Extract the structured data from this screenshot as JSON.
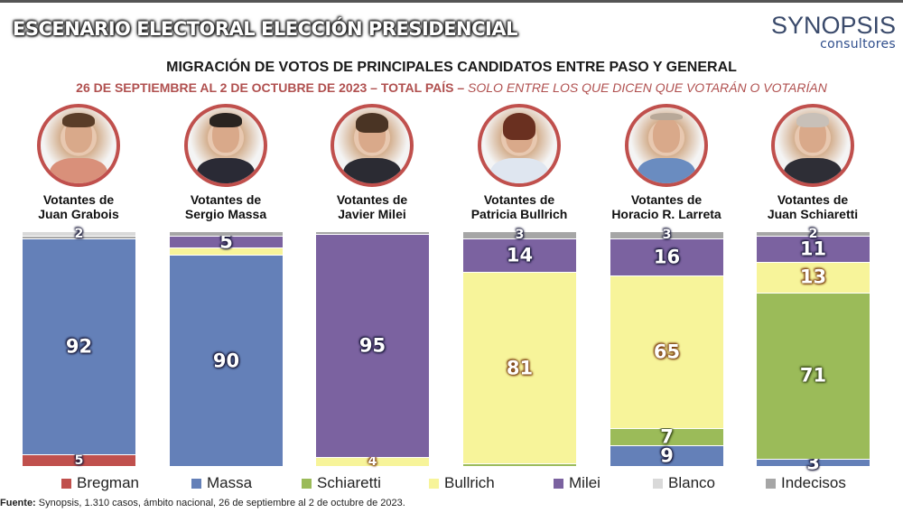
{
  "header": {
    "main_title": "ESCENARIO ELECTORAL ELECCIÓN PRESIDENCIAL",
    "logo_main": "SYNOPSIS",
    "logo_sub": "consultores",
    "subtitle": "MIGRACIÓN DE VOTOS DE PRINCIPALES CANDIDATOS ENTRE PASO Y GENERAL",
    "subtitle2_bold": "26 DE SEPTIEMBRE AL 2 DE OCTUBRE DE 2023 – TOTAL PAÍS –",
    "subtitle2_italic": "SOLO ENTRE LOS QUE DICEN QUE VOTARÁN O VOTARÍAN"
  },
  "columns": [
    {
      "line1": "Votantes de",
      "line2": "Juan Grabois"
    },
    {
      "line1": "Votantes de",
      "line2": "Sergio Massa"
    },
    {
      "line1": "Votantes de",
      "line2": "Javier Milei"
    },
    {
      "line1": "Votantes de",
      "line2": "Patricia Bullrich"
    },
    {
      "line1": "Votantes de",
      "line2": "Horacio R. Larreta"
    },
    {
      "line1": "Votantes de",
      "line2": "Juan Schiaretti"
    }
  ],
  "colors": {
    "Bregman": "#c0504d",
    "Massa": "#6480b8",
    "Schiaretti": "#9bbb59",
    "Bullrich": "#f7f49a",
    "Milei": "#7b62a0",
    "Blanco": "#d9d9d9",
    "Indecisos": "#a6a6a6",
    "accent_red": "#b0504f"
  },
  "legend": [
    {
      "label": "Bregman",
      "color": "#c0504d"
    },
    {
      "label": "Massa",
      "color": "#6480b8"
    },
    {
      "label": "Schiaretti",
      "color": "#9bbb59"
    },
    {
      "label": "Bullrich",
      "color": "#f7f49a"
    },
    {
      "label": "Milei",
      "color": "#7b62a0"
    },
    {
      "label": "Blanco",
      "color": "#d9d9d9"
    },
    {
      "label": "Indecisos",
      "color": "#a6a6a6"
    }
  ],
  "footer": {
    "source_label": "Fuente:",
    "source_text": " Synopsis, 1.310 casos, ámbito nacional, 26 de septiembre al 2 de octubre de 2023."
  },
  "chart_data": {
    "type": "bar",
    "stacked": true,
    "normalized_100": true,
    "title": "MIGRACIÓN DE VOTOS DE PRINCIPALES CANDIDATOS ENTRE PASO Y GENERAL",
    "subtitle": "26 DE SEPTIEMBRE AL 2 DE OCTUBRE DE 2023 – TOTAL PAÍS – SOLO ENTRE LOS QUE DICEN QUE VOTARÁN O VOTARÍAN",
    "categories": [
      "Votantes de Juan Grabois",
      "Votantes de Sergio Massa",
      "Votantes de Javier Milei",
      "Votantes de Patricia Bullrich",
      "Votantes de Horacio R. Larreta",
      "Votantes de Juan Schiaretti"
    ],
    "stack_order_bottom_to_top": [
      "Bregman",
      "Massa",
      "Schiaretti",
      "Bullrich",
      "Milei",
      "Indecisos",
      "Blanco"
    ],
    "series": [
      {
        "name": "Bregman",
        "values": [
          5,
          0,
          0,
          0,
          0,
          0
        ]
      },
      {
        "name": "Massa",
        "values": [
          92,
          90,
          0,
          0,
          9,
          3
        ]
      },
      {
        "name": "Schiaretti",
        "values": [
          0,
          0,
          0,
          1,
          7,
          71
        ]
      },
      {
        "name": "Bullrich",
        "values": [
          0,
          3,
          4,
          81,
          65,
          13
        ]
      },
      {
        "name": "Milei",
        "values": [
          0,
          5,
          95,
          14,
          16,
          11
        ]
      },
      {
        "name": "Indecisos",
        "values": [
          1,
          2,
          1,
          3,
          3,
          2
        ]
      },
      {
        "name": "Blanco",
        "values": [
          2,
          0,
          0,
          0,
          0,
          0
        ]
      }
    ],
    "shown_labels": [
      {
        "category": "Votantes de Juan Grabois",
        "labels": {
          "Bregman": 5,
          "Massa": 92,
          "Blanco": 2
        }
      },
      {
        "category": "Votantes de Sergio Massa",
        "labels": {
          "Massa": 90,
          "Milei": 5
        }
      },
      {
        "category": "Votantes de Javier Milei",
        "labels": {
          "Bullrich": 4,
          "Milei": 95
        }
      },
      {
        "category": "Votantes de Patricia Bullrich",
        "labels": {
          "Bullrich": 81,
          "Milei": 14,
          "Indecisos": 3
        }
      },
      {
        "category": "Votantes de Horacio R. Larreta",
        "labels": {
          "Massa": 9,
          "Schiaretti": 7,
          "Bullrich": 65,
          "Milei": 16,
          "Indecisos": 3
        }
      },
      {
        "category": "Votantes de Juan Schiaretti",
        "labels": {
          "Massa": 3,
          "Schiaretti": 71,
          "Bullrich": 13,
          "Milei": 11,
          "Indecisos": 2
        }
      }
    ],
    "xlabel": "",
    "ylabel": "",
    "ylim": [
      0,
      100
    ],
    "grid": false,
    "legend_position": "bottom"
  },
  "bars": [
    {
      "segments": [
        {
          "name": "Bregman",
          "value": 5,
          "label": "5",
          "style": "dark",
          "size": "small"
        },
        {
          "name": "Massa",
          "value": 92,
          "label": "92",
          "style": "dark",
          "size": "big"
        },
        {
          "name": "Indecisos",
          "value": 1,
          "label": "",
          "style": "dark",
          "size": "small"
        },
        {
          "name": "Blanco",
          "value": 2,
          "label": "2",
          "style": "dark",
          "size": "small"
        }
      ]
    },
    {
      "segments": [
        {
          "name": "Massa",
          "value": 90,
          "label": "90",
          "style": "dark",
          "size": "big"
        },
        {
          "name": "Bullrich",
          "value": 3,
          "label": "",
          "style": "brown",
          "size": "small"
        },
        {
          "name": "Milei",
          "value": 5,
          "label": "5",
          "style": "dark",
          "size": "big"
        },
        {
          "name": "Indecisos",
          "value": 2,
          "label": "",
          "style": "dark",
          "size": "small"
        }
      ]
    },
    {
      "segments": [
        {
          "name": "Bullrich",
          "value": 4,
          "label": "4",
          "style": "brown",
          "size": "small"
        },
        {
          "name": "Milei",
          "value": 95,
          "label": "95",
          "style": "dark",
          "size": "big"
        },
        {
          "name": "Indecisos",
          "value": 1,
          "label": "",
          "style": "dark",
          "size": "small"
        }
      ]
    },
    {
      "segments": [
        {
          "name": "Schiaretti",
          "value": 1,
          "label": "",
          "style": "green",
          "size": "small"
        },
        {
          "name": "Bullrich",
          "value": 81,
          "label": "81",
          "style": "brown",
          "size": "big"
        },
        {
          "name": "Milei",
          "value": 14,
          "label": "14",
          "style": "dark",
          "size": "big"
        },
        {
          "name": "Indecisos",
          "value": 3,
          "label": "3",
          "style": "dark",
          "size": "small"
        }
      ]
    },
    {
      "segments": [
        {
          "name": "Massa",
          "value": 9,
          "label": "9",
          "style": "dark",
          "size": "big"
        },
        {
          "name": "Schiaretti",
          "value": 7,
          "label": "7",
          "style": "green",
          "size": "big"
        },
        {
          "name": "Bullrich",
          "value": 65,
          "label": "65",
          "style": "brown",
          "size": "big"
        },
        {
          "name": "Milei",
          "value": 16,
          "label": "16",
          "style": "dark",
          "size": "big"
        },
        {
          "name": "Indecisos",
          "value": 3,
          "label": "3",
          "style": "dark",
          "size": "small"
        }
      ]
    },
    {
      "segments": [
        {
          "name": "Massa",
          "value": 3,
          "label": "3",
          "style": "dark",
          "size": "big"
        },
        {
          "name": "Schiaretti",
          "value": 71,
          "label": "71",
          "style": "green",
          "size": "big"
        },
        {
          "name": "Bullrich",
          "value": 13,
          "label": "13",
          "style": "brown",
          "size": "big"
        },
        {
          "name": "Milei",
          "value": 11,
          "label": "11",
          "style": "dark",
          "size": "big"
        },
        {
          "name": "Indecisos",
          "value": 2,
          "label": "2",
          "style": "dark",
          "size": "small"
        }
      ]
    }
  ]
}
